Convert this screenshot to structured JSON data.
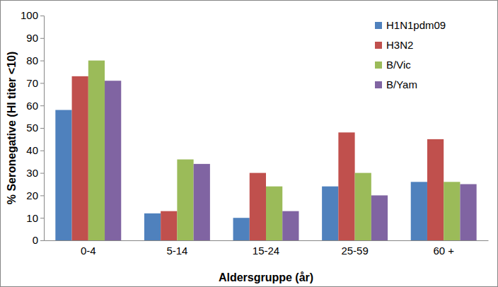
{
  "chart_data": {
    "type": "bar",
    "x_label": "Aldersgruppe (år)",
    "y_label": "% Seronegative (HI titer <10)",
    "categories": [
      "0-4",
      "5-14",
      "15-24",
      "25-59",
      "60 +"
    ],
    "series": [
      {
        "name": "H1N1pdm09",
        "color": "#4f81bd",
        "values": [
          58,
          12,
          10,
          24,
          26
        ]
      },
      {
        "name": "H3N2",
        "color": "#c0504d",
        "values": [
          73,
          13,
          30,
          48,
          45
        ]
      },
      {
        "name": "B/Vic",
        "color": "#9bbb59",
        "values": [
          80,
          36,
          24,
          30,
          26
        ]
      },
      {
        "name": "B/Yam",
        "color": "#8064a2",
        "values": [
          71,
          34,
          13,
          20,
          25
        ]
      }
    ],
    "ylim": [
      0,
      100
    ],
    "yticks": [
      0,
      10,
      20,
      30,
      40,
      50,
      60,
      70,
      80,
      90,
      100
    ],
    "grid": false,
    "legend": "top-right"
  }
}
